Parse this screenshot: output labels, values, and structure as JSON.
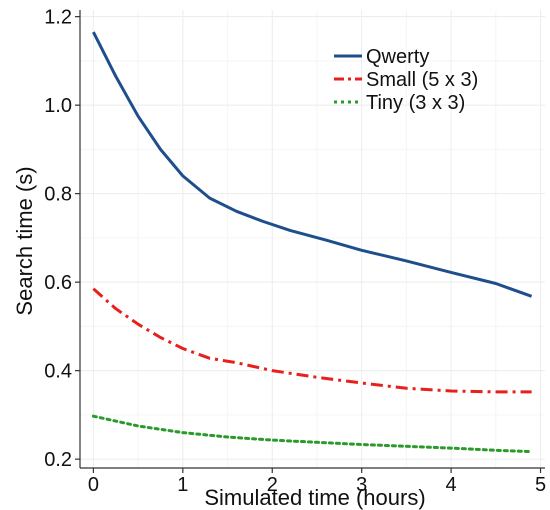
{
  "chart_data": {
    "type": "line",
    "xlabel": "Simulated time (hours)",
    "ylabel": "Search time (s)",
    "xlim": [
      -0.15,
      5.05
    ],
    "ylim": [
      0.18,
      1.215
    ],
    "xticks": [
      0,
      1,
      2,
      3,
      4,
      5
    ],
    "yticks": [
      0.2,
      0.4,
      0.6,
      0.8,
      1.0,
      1.2
    ],
    "xtick_labels": [
      "0",
      "1",
      "2",
      "3",
      "4",
      "5"
    ],
    "ytick_labels": [
      "0.2",
      "0.4",
      "0.6",
      "0.8",
      "1.0",
      "1.2"
    ],
    "grid": true,
    "legend_position": "top-right",
    "series": [
      {
        "name": "Qwerty",
        "color": "#1f4e8c",
        "style": "solid",
        "x": [
          0,
          0.25,
          0.5,
          0.75,
          1.0,
          1.3,
          1.6,
          1.9,
          2.2,
          2.6,
          3.0,
          3.5,
          4.0,
          4.5,
          4.9
        ],
        "y": [
          1.165,
          1.065,
          0.975,
          0.9,
          0.84,
          0.79,
          0.76,
          0.737,
          0.717,
          0.695,
          0.672,
          0.648,
          0.622,
          0.597,
          0.568
        ]
      },
      {
        "name": "Small (5 x 3)",
        "color": "#e8201c",
        "style": "dashdot",
        "x": [
          0,
          0.25,
          0.5,
          0.75,
          1.0,
          1.3,
          1.6,
          2.0,
          2.5,
          3.0,
          3.5,
          4.0,
          4.5,
          4.9
        ],
        "y": [
          0.585,
          0.54,
          0.505,
          0.475,
          0.45,
          0.428,
          0.418,
          0.4,
          0.385,
          0.372,
          0.36,
          0.354,
          0.352,
          0.352
        ]
      },
      {
        "name": "Tiny (3 x 3)",
        "color": "#2a9a2a",
        "style": "dotted",
        "x": [
          0,
          0.5,
          1.0,
          1.5,
          2.0,
          2.5,
          3.0,
          3.5,
          4.0,
          4.5,
          4.9
        ],
        "y": [
          0.297,
          0.275,
          0.26,
          0.25,
          0.243,
          0.238,
          0.233,
          0.229,
          0.225,
          0.22,
          0.217
        ]
      }
    ]
  }
}
